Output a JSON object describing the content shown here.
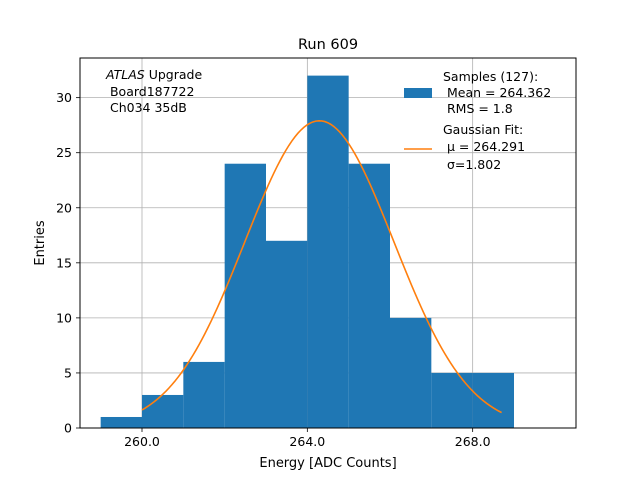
{
  "chart_data": {
    "type": "bar",
    "title": "Run 609",
    "xlabel": "Energy [ADC Counts]",
    "ylabel": "Entries",
    "xlim": [
      258.5,
      270.5
    ],
    "ylim": [
      0,
      33.6
    ],
    "x_ticks": [
      260,
      264,
      268
    ],
    "x_tick_labels": [
      "260.0",
      "264.0",
      "268.0"
    ],
    "y_ticks": [
      0,
      5,
      10,
      15,
      20,
      25,
      30
    ],
    "y_tick_labels": [
      "0",
      "5",
      "10",
      "15",
      "20",
      "25",
      "30"
    ],
    "grid": true,
    "histogram": {
      "name": "Samples (127):",
      "color": "#1f77b4",
      "bins": [
        {
          "lo": 259,
          "hi": 260,
          "count": 1
        },
        {
          "lo": 260,
          "hi": 261,
          "count": 3
        },
        {
          "lo": 261,
          "hi": 262,
          "count": 6
        },
        {
          "lo": 262,
          "hi": 263,
          "count": 24
        },
        {
          "lo": 263,
          "hi": 264,
          "count": 17
        },
        {
          "lo": 264,
          "hi": 265,
          "count": 32
        },
        {
          "lo": 265,
          "hi": 266,
          "count": 24
        },
        {
          "lo": 266,
          "hi": 267,
          "count": 10
        },
        {
          "lo": 267,
          "hi": 268,
          "count": 5
        },
        {
          "lo": 268,
          "hi": 269,
          "count": 5
        }
      ]
    },
    "fit": {
      "name": "Gaussian Fit:",
      "color": "#ff7f0e",
      "mu": 264.291,
      "sigma": 1.802,
      "amplitude": 27.9,
      "x_range": [
        260,
        268.7
      ]
    },
    "annotation": {
      "italic": "ATLAS",
      "line1_rest": " Upgrade",
      "line2": " Board187722",
      "line3": " Ch034 35dB"
    },
    "legend": {
      "placement": "top-right",
      "samples_title": "Samples (127):",
      "samples_mean": " Mean = 264.362",
      "samples_rms": " RMS = 1.8",
      "fit_title": "Gaussian Fit:",
      "fit_mu": " μ = 264.291",
      "fit_sigma": " σ=1.802"
    }
  }
}
